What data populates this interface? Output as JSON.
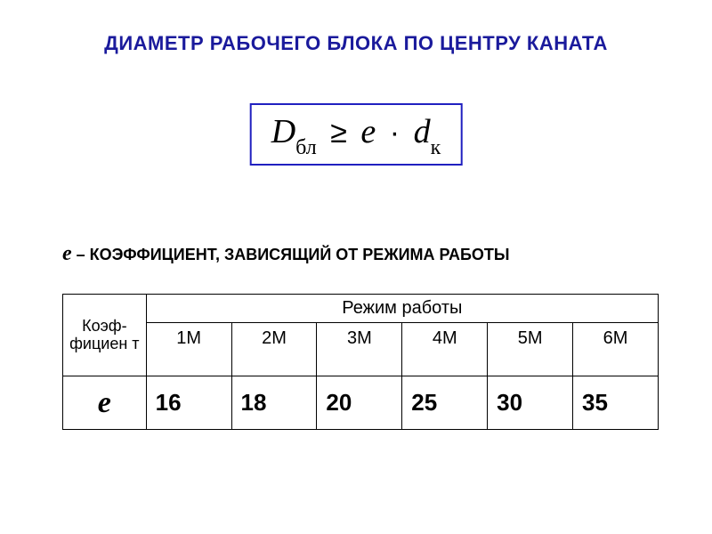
{
  "title": "ДИАМЕТР РАБОЧЕГО БЛОКА ПО ЦЕНТРУ КАНАТА",
  "formula": {
    "D": "D",
    "D_sub": "бл",
    "ge": "≥",
    "e": "e",
    "dot": "·",
    "d": "d",
    "d_sub": "к"
  },
  "definition": {
    "e": "e",
    "dash": " – ",
    "text": "КОЭФФИЦИЕНТ, ЗАВИСЯЩИЙ ОТ РЕЖИМА РАБОТЫ"
  },
  "table": {
    "coef_header": "Коэф-фициен т",
    "mode_header": "Режим работы",
    "modes": [
      "1М",
      "2М",
      "3М",
      "4М",
      "5М",
      "6М"
    ],
    "row_label": "е",
    "values": [
      "16",
      "18",
      "20",
      "25",
      "30",
      "35"
    ]
  },
  "styling": {
    "title_color": "#1a1a9c",
    "formula_border_color": "#2020c0",
    "background_color": "#ffffff",
    "table_border_color": "#000000",
    "title_fontsize": 22,
    "formula_fontsize": 38,
    "definition_fontsize": 18,
    "value_fontsize": 26
  }
}
